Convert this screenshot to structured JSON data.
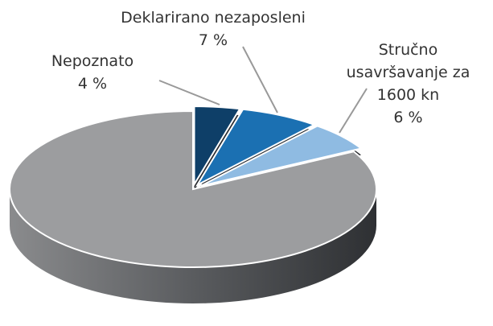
{
  "chart_data": {
    "type": "pie",
    "categories": [
      "Nepoznato",
      "Deklarirano nezaposleni",
      "Stručno usavršavanje za 1600 kn",
      null
    ],
    "values": [
      4,
      7,
      6,
      83
    ],
    "value_labels": [
      "4 %",
      "7 %",
      "6 %",
      null
    ],
    "colors": [
      "#0e3f68",
      "#1b70b2",
      "#8fbbe2",
      "#9c9d9f"
    ]
  }
}
